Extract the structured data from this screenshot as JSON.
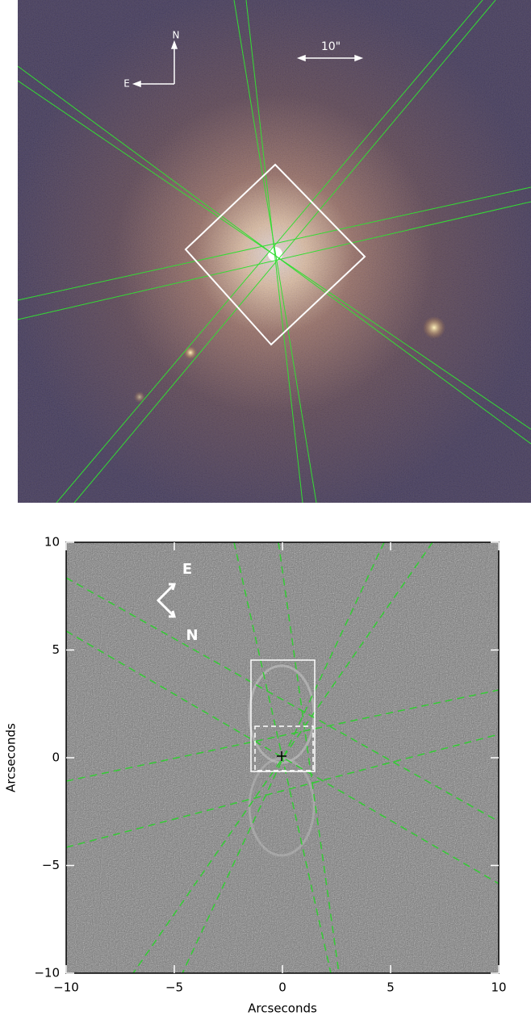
{
  "chart_data": [
    {
      "type": "image",
      "compass": {
        "north": "N",
        "east": "E"
      },
      "scale_bar": "10\""
    },
    {
      "type": "image",
      "xlabel": "Arcseconds",
      "ylabel": "Arcseconds",
      "xlim": [
        -10,
        10
      ],
      "ylim": [
        -10,
        10
      ],
      "xticks": [
        {
          "value": -10,
          "label": "−10"
        },
        {
          "value": -5,
          "label": "−5"
        },
        0,
        5,
        10
      ],
      "yticks": [
        {
          "value": -10,
          "label": "−10"
        },
        {
          "value": -5,
          "label": "−5"
        },
        0,
        5,
        10
      ],
      "compass": {
        "east": "E",
        "north": "N"
      }
    }
  ]
}
